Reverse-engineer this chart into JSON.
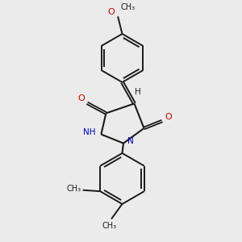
{
  "bg_color": "#ebebeb",
  "bond_color": "#1a1a1a",
  "N_color": "#0000cc",
  "O_color": "#cc0000",
  "figsize": [
    3.0,
    3.0
  ],
  "dpi": 100,
  "xlim": [
    0,
    10
  ],
  "ylim": [
    0,
    10
  ]
}
